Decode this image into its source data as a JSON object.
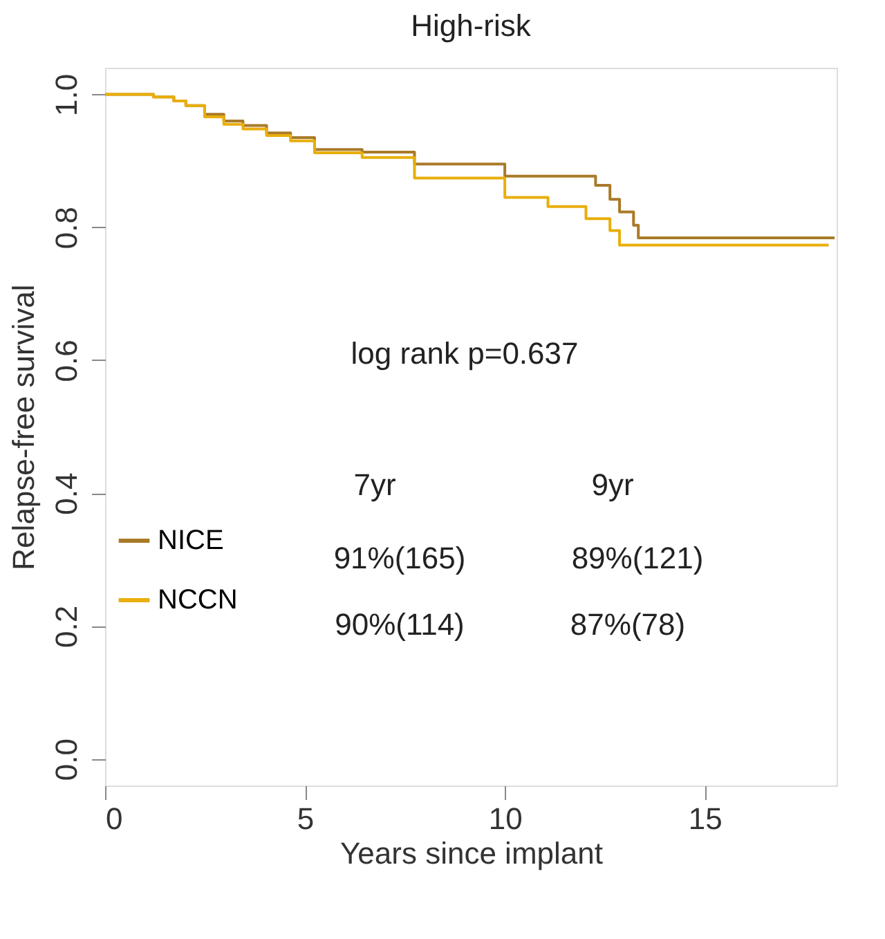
{
  "chart_data": {
    "type": "step",
    "title": "High-risk",
    "xlabel": "Years since implant",
    "ylabel": "Relapse-free survival",
    "xlim": [
      0,
      18.3
    ],
    "ylim": [
      -0.04,
      1.04
    ],
    "xticks": [
      0,
      5,
      10,
      15
    ],
    "yticks": [
      {
        "value": 0,
        "label": "0.0"
      },
      0.2,
      0.4,
      0.6,
      0.8,
      {
        "value": 1,
        "label": "1.0"
      }
    ],
    "grid": false,
    "legend": "bottom left",
    "line_style": "solid",
    "series": [
      {
        "name": "NICE",
        "color": "#a97a28",
        "x": [
          0,
          1.21,
          1.72,
          2.02,
          2.49,
          2.97,
          3.45,
          4.04,
          4.64,
          5.24,
          6.43,
          7.74,
          10.0,
          12.27,
          12.63,
          12.87,
          13.22,
          13.34,
          18.25
        ],
        "values": [
          1.0,
          0.996,
          0.99,
          0.983,
          0.97,
          0.96,
          0.953,
          0.942,
          0.935,
          0.917,
          0.913,
          0.895,
          0.877,
          0.863,
          0.842,
          0.823,
          0.803,
          0.784,
          0.784
        ]
      },
      {
        "name": "NCCN",
        "color": "#e9ae0b",
        "x": [
          0,
          1.21,
          1.72,
          2.02,
          2.49,
          2.97,
          3.45,
          4.04,
          4.64,
          5.24,
          6.43,
          7.74,
          10.0,
          11.08,
          12.03,
          12.63,
          12.87,
          18.1
        ],
        "values": [
          1.0,
          0.996,
          0.99,
          0.983,
          0.966,
          0.955,
          0.948,
          0.938,
          0.93,
          0.912,
          0.905,
          0.874,
          0.845,
          0.831,
          0.813,
          0.795,
          0.773,
          0.773
        ]
      }
    ],
    "annotations": [
      "log rank p=0.637",
      "7yr",
      "9yr",
      "91%(165)",
      "89%(121)",
      "90%(114)",
      "87%(78)"
    ]
  }
}
